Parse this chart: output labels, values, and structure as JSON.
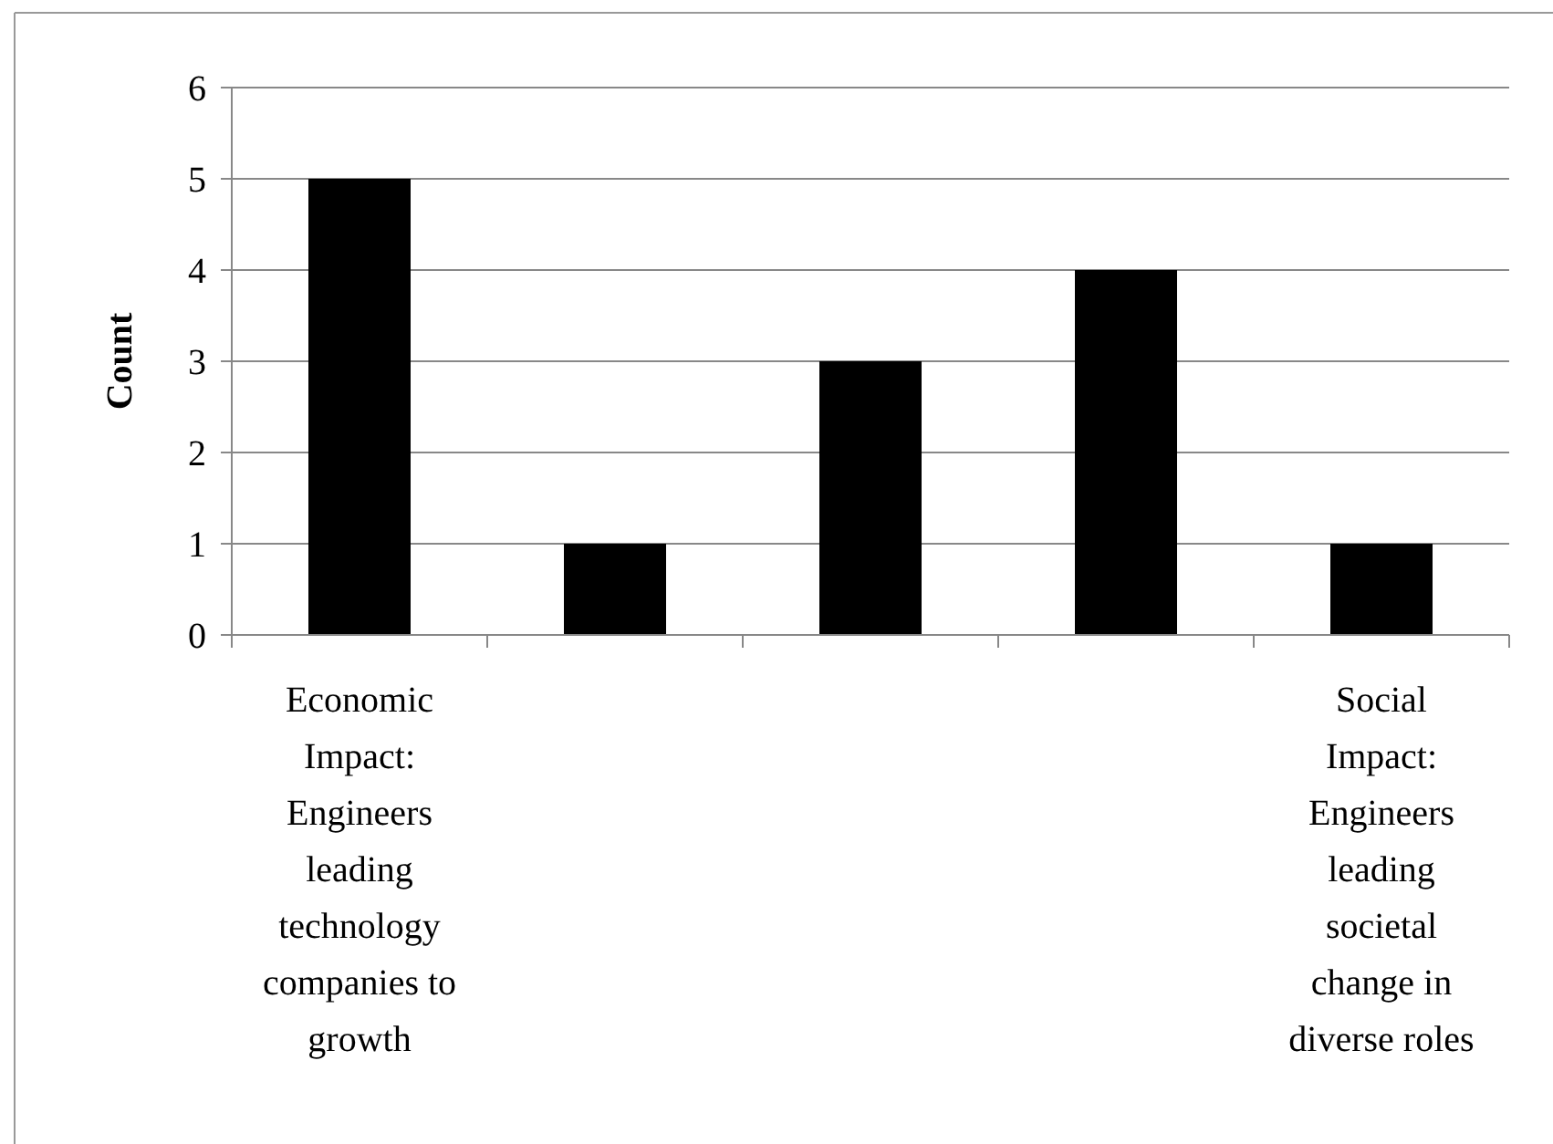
{
  "chart_data": {
    "type": "bar",
    "ylabel": "Count",
    "categories": [
      "Economic Impact: Engineers leading technology companies to growth",
      null,
      null,
      null,
      "Social Impact: Engineers leading societal change in diverse roles"
    ],
    "values": [
      5,
      1,
      3,
      4,
      1
    ],
    "color": "#000000",
    "ylim": [
      0,
      6
    ],
    "yticks": [
      0,
      1,
      2,
      3,
      4,
      5,
      6
    ],
    "grid": "y"
  }
}
